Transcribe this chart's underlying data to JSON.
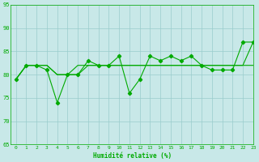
{
  "x": [
    0,
    1,
    2,
    3,
    4,
    5,
    6,
    7,
    8,
    9,
    10,
    11,
    12,
    13,
    14,
    15,
    16,
    17,
    18,
    19,
    20,
    21,
    22,
    23
  ],
  "line_volatile": [
    79,
    82,
    82,
    81,
    74,
    80,
    80,
    83,
    82,
    82,
    84,
    76,
    79,
    84,
    83,
    84,
    83,
    84,
    82,
    81,
    81,
    81,
    87,
    87
  ],
  "line_flat": [
    79,
    82,
    82,
    82,
    80,
    80,
    82,
    82,
    82,
    82,
    82,
    82,
    82,
    82,
    82,
    82,
    82,
    82,
    82,
    82,
    82,
    82,
    82,
    82
  ],
  "line_trend": [
    79,
    82,
    82,
    82,
    80,
    80,
    80,
    82,
    82,
    82,
    82,
    82,
    82,
    82,
    82,
    82,
    82,
    82,
    82,
    82,
    82,
    82,
    82,
    87
  ],
  "ylim": [
    65,
    95
  ],
  "xlim": [
    -0.5,
    23
  ],
  "yticks": [
    65,
    70,
    75,
    80,
    85,
    90,
    95
  ],
  "xticks": [
    0,
    1,
    2,
    3,
    4,
    5,
    6,
    7,
    8,
    9,
    10,
    11,
    12,
    13,
    14,
    15,
    16,
    17,
    18,
    19,
    20,
    21,
    22,
    23
  ],
  "xlabel": "Humidité relative (%)",
  "line_color": "#00aa00",
  "bg_color": "#c8e8e8",
  "grid_color": "#99cccc"
}
